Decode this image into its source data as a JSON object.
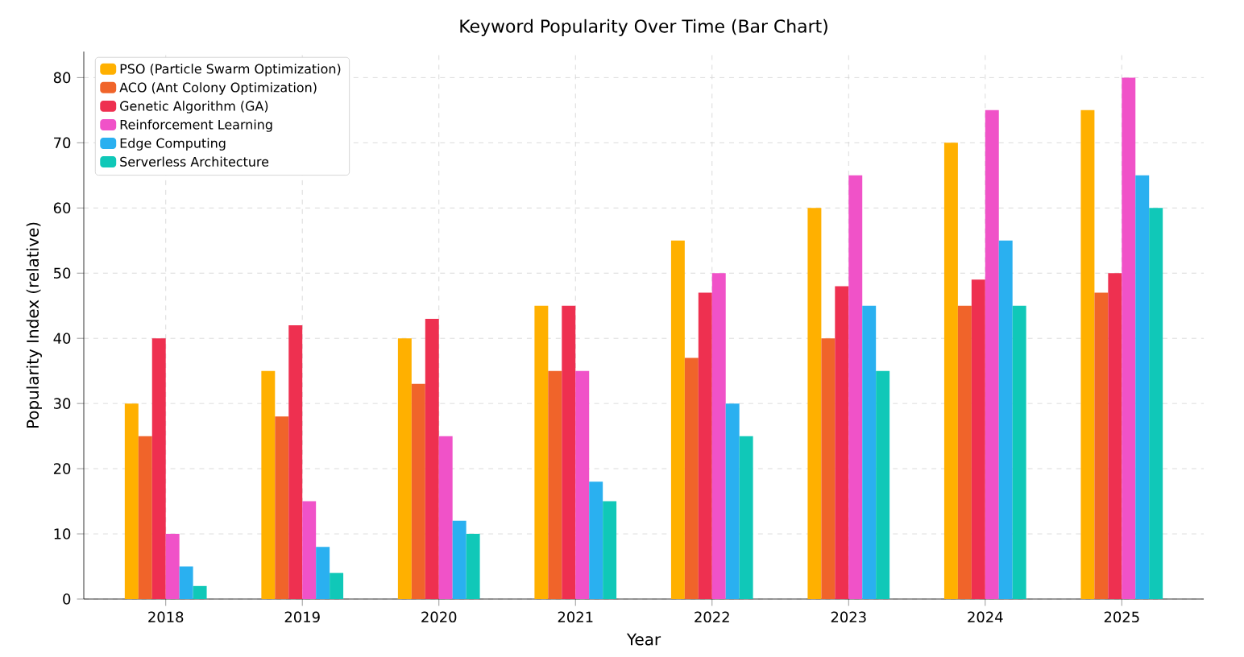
{
  "chart_data": {
    "type": "bar",
    "title": "Keyword Popularity Over Time (Bar Chart)",
    "xlabel": "Year",
    "ylabel": "Popularity Index (relative)",
    "categories": [
      "2018",
      "2019",
      "2020",
      "2021",
      "2022",
      "2023",
      "2024",
      "2025"
    ],
    "series": [
      {
        "name": "PSO (Particle Swarm Optimization)",
        "color": "#ffb000",
        "values": [
          30,
          35,
          40,
          45,
          55,
          60,
          70,
          75
        ]
      },
      {
        "name": "ACO (Ant Colony Optimization)",
        "color": "#f0642a",
        "values": [
          25,
          28,
          33,
          35,
          37,
          40,
          45,
          47
        ]
      },
      {
        "name": "Genetic Algorithm (GA)",
        "color": "#ee3050",
        "values": [
          40,
          42,
          43,
          45,
          47,
          48,
          49,
          50
        ]
      },
      {
        "name": "Reinforcement Learning",
        "color": "#f052c8",
        "values": [
          10,
          15,
          25,
          35,
          50,
          65,
          75,
          80
        ]
      },
      {
        "name": "Edge Computing",
        "color": "#2ab0f0",
        "values": [
          5,
          8,
          12,
          18,
          30,
          45,
          55,
          65
        ]
      },
      {
        "name": "Serverless Architecture",
        "color": "#10c8b8",
        "values": [
          2,
          4,
          10,
          15,
          25,
          35,
          45,
          60
        ]
      }
    ],
    "ylim": [
      0,
      84
    ],
    "yticks": [
      0,
      10,
      20,
      30,
      40,
      50,
      60,
      70,
      80
    ],
    "grid": true,
    "legend": "top left"
  }
}
